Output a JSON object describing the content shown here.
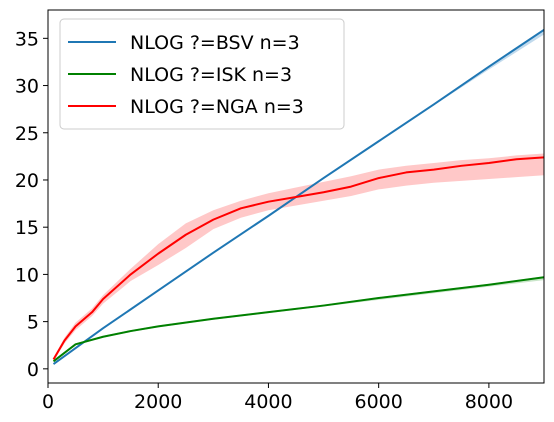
{
  "chart_data": {
    "type": "line",
    "xlim": [
      0,
      9000
    ],
    "ylim": [
      -1.5,
      38
    ],
    "xticks": [
      0,
      2000,
      4000,
      6000,
      8000
    ],
    "yticks": [
      0,
      5,
      10,
      15,
      20,
      25,
      30,
      35
    ],
    "grid": false,
    "legend_position": "upper-left",
    "series": [
      {
        "name": "NLOG ?=BSV n=3",
        "color": "#1f77b4",
        "band_color": "#a6cbe6",
        "x": [
          100,
          1000,
          2000,
          3000,
          4000,
          5000,
          6000,
          7000,
          8000,
          9000
        ],
        "y": [
          0.5,
          4.3,
          8.3,
          12.3,
          16.2,
          20.2,
          24.1,
          28.0,
          32.0,
          35.9
        ],
        "lower": [
          0.5,
          4.3,
          8.3,
          12.3,
          16.2,
          20.2,
          24.0,
          27.9,
          31.7,
          35.4
        ],
        "upper": [
          0.5,
          4.3,
          8.3,
          12.3,
          16.2,
          20.2,
          24.1,
          28.0,
          32.0,
          36.0
        ]
      },
      {
        "name": "NLOG ?=ISK n=3",
        "color": "#008000",
        "band_color": "#b3dcb3",
        "x": [
          100,
          500,
          1000,
          1500,
          2000,
          3000,
          4000,
          5000,
          6000,
          7000,
          8000,
          9000
        ],
        "y": [
          0.8,
          2.6,
          3.4,
          4.0,
          4.5,
          5.3,
          6.0,
          6.7,
          7.5,
          8.2,
          8.9,
          9.7
        ],
        "lower": [
          0.7,
          2.5,
          3.3,
          3.9,
          4.4,
          5.2,
          5.9,
          6.6,
          7.3,
          8.0,
          8.7,
          9.4
        ],
        "upper": [
          0.9,
          2.7,
          3.5,
          4.1,
          4.6,
          5.4,
          6.1,
          6.8,
          7.6,
          8.3,
          9.0,
          9.8
        ]
      },
      {
        "name": "NLOG ?=NGA n=3",
        "color": "#ff0000",
        "band_color": "#ffb0b0",
        "x": [
          100,
          300,
          500,
          800,
          1000,
          1500,
          2000,
          2500,
          3000,
          3500,
          4000,
          4500,
          5000,
          5500,
          6000,
          6500,
          7000,
          7500,
          8000,
          8500,
          9000
        ],
        "y": [
          1.0,
          3.0,
          4.5,
          6.0,
          7.4,
          10.0,
          12.2,
          14.2,
          15.8,
          17.0,
          17.7,
          18.2,
          18.7,
          19.3,
          20.2,
          20.8,
          21.1,
          21.5,
          21.8,
          22.2,
          22.4
        ],
        "lower": [
          0.8,
          2.7,
          4.1,
          5.6,
          6.9,
          9.3,
          11.0,
          12.8,
          14.8,
          16.0,
          16.8,
          17.3,
          17.8,
          18.3,
          19.0,
          19.4,
          19.7,
          19.9,
          20.1,
          20.3,
          20.5
        ],
        "upper": [
          1.2,
          3.3,
          4.9,
          6.4,
          7.8,
          10.6,
          13.2,
          15.4,
          16.8,
          17.8,
          18.6,
          19.2,
          19.8,
          20.4,
          21.1,
          21.5,
          21.8,
          22.1,
          22.3,
          22.6,
          22.8
        ]
      }
    ]
  }
}
